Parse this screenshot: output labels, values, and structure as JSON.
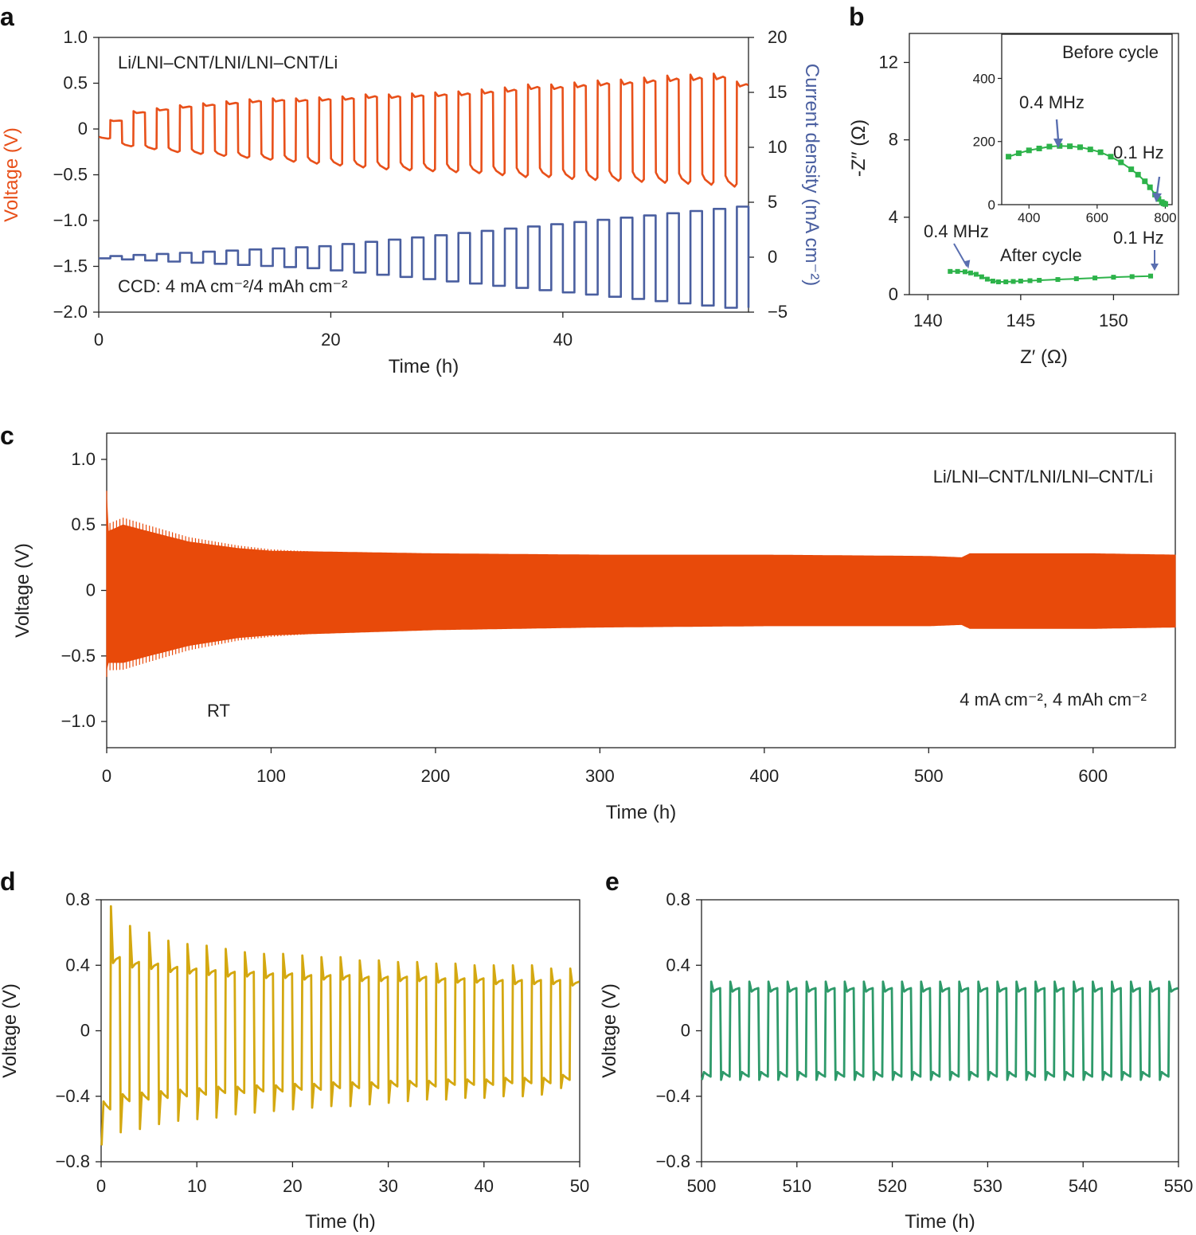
{
  "colors": {
    "a_voltage": "#e8501a",
    "a_current": "#4a5fa0",
    "b_green": "#2db34a",
    "b_arrow": "#5a6fb0",
    "c_voltage": "#e84a0a",
    "d_voltage": "#d4a810",
    "e_voltage": "#2e9a6a"
  },
  "chart_data": [
    {
      "panel": "a",
      "type": "line",
      "annotations": [
        "Li/LNI–CNT/LNI/LNI–CNT/Li",
        "CCD: 4 mA cm⁻²/4 mAh cm⁻²"
      ],
      "xlabel": "Time (h)",
      "ylabel": "Voltage (V)",
      "y2label": "Current density (mA cm⁻²)",
      "xlim": [
        0,
        56
      ],
      "ylim": [
        -2.0,
        1.0
      ],
      "y2lim": [
        -5,
        20
      ],
      "xticks": [
        0,
        20,
        40
      ],
      "yticks": [
        -2.0,
        -1.5,
        -1.0,
        -0.5,
        0,
        0.5,
        1.0
      ],
      "ytick_labels": [
        "−2.0",
        "−1.5",
        "−1.0",
        "−0.5",
        "0",
        "0.5",
        "1.0"
      ],
      "y2ticks": [
        -5,
        0,
        5,
        10,
        15,
        20
      ],
      "y2tick_labels": [
        "−5",
        "0",
        "5",
        "10",
        "15",
        "20"
      ],
      "cycle_period_h": 2.0,
      "series": [
        {
          "name": "Voltage (V)",
          "axis": "left",
          "cycles": [
            {
              "t": 0,
              "plating": -0.1,
              "stripping": 0.09
            },
            {
              "t": 2,
              "plating": -0.18,
              "stripping": 0.18
            },
            {
              "t": 4,
              "plating": -0.21,
              "stripping": 0.21
            },
            {
              "t": 6,
              "plating": -0.24,
              "stripping": 0.24
            },
            {
              "t": 8,
              "plating": -0.26,
              "stripping": 0.26
            },
            {
              "t": 10,
              "plating": -0.28,
              "stripping": 0.28
            },
            {
              "t": 12,
              "plating": -0.3,
              "stripping": 0.3
            },
            {
              "t": 14,
              "plating": -0.32,
              "stripping": 0.31
            },
            {
              "t": 16,
              "plating": -0.34,
              "stripping": 0.31
            },
            {
              "t": 18,
              "plating": -0.36,
              "stripping": 0.32
            },
            {
              "t": 20,
              "plating": -0.38,
              "stripping": 0.33
            },
            {
              "t": 22,
              "plating": -0.4,
              "stripping": 0.35
            },
            {
              "t": 24,
              "plating": -0.42,
              "stripping": 0.35
            },
            {
              "t": 26,
              "plating": -0.43,
              "stripping": 0.36
            },
            {
              "t": 28,
              "plating": -0.44,
              "stripping": 0.37
            },
            {
              "t": 30,
              "plating": -0.45,
              "stripping": 0.38
            },
            {
              "t": 32,
              "plating": -0.46,
              "stripping": 0.4
            },
            {
              "t": 34,
              "plating": -0.48,
              "stripping": 0.42
            },
            {
              "t": 36,
              "plating": -0.5,
              "stripping": 0.45
            },
            {
              "t": 38,
              "plating": -0.5,
              "stripping": 0.45
            },
            {
              "t": 40,
              "plating": -0.52,
              "stripping": 0.47
            },
            {
              "t": 42,
              "plating": -0.53,
              "stripping": 0.49
            },
            {
              "t": 44,
              "plating": -0.54,
              "stripping": 0.5
            },
            {
              "t": 46,
              "plating": -0.55,
              "stripping": 0.52
            },
            {
              "t": 48,
              "plating": -0.56,
              "stripping": 0.54
            },
            {
              "t": 50,
              "plating": -0.57,
              "stripping": 0.55
            },
            {
              "t": 52,
              "plating": -0.58,
              "stripping": 0.56
            },
            {
              "t": 54,
              "plating": -0.6,
              "stripping": 0.48
            }
          ]
        },
        {
          "name": "Current density (mA cm⁻²)",
          "axis": "right",
          "cycles": [
            {
              "t": 0,
              "amplitude": 0.1
            },
            {
              "t": 2,
              "amplitude": 0.2
            },
            {
              "t": 4,
              "amplitude": 0.3
            },
            {
              "t": 6,
              "amplitude": 0.4
            },
            {
              "t": 8,
              "amplitude": 0.5
            },
            {
              "t": 10,
              "amplitude": 0.6
            },
            {
              "t": 12,
              "amplitude": 0.7
            },
            {
              "t": 14,
              "amplitude": 0.8
            },
            {
              "t": 16,
              "amplitude": 0.9
            },
            {
              "t": 18,
              "amplitude": 1.0
            },
            {
              "t": 20,
              "amplitude": 1.2
            },
            {
              "t": 22,
              "amplitude": 1.4
            },
            {
              "t": 24,
              "amplitude": 1.6
            },
            {
              "t": 26,
              "amplitude": 1.8
            },
            {
              "t": 28,
              "amplitude": 2.0
            },
            {
              "t": 30,
              "amplitude": 2.2
            },
            {
              "t": 32,
              "amplitude": 2.4
            },
            {
              "t": 34,
              "amplitude": 2.6
            },
            {
              "t": 36,
              "amplitude": 2.8
            },
            {
              "t": 38,
              "amplitude": 3.0
            },
            {
              "t": 40,
              "amplitude": 3.2
            },
            {
              "t": 42,
              "amplitude": 3.4
            },
            {
              "t": 44,
              "amplitude": 3.6
            },
            {
              "t": 46,
              "amplitude": 3.8
            },
            {
              "t": 48,
              "amplitude": 4.0
            },
            {
              "t": 50,
              "amplitude": 4.2
            },
            {
              "t": 52,
              "amplitude": 4.4
            },
            {
              "t": 54,
              "amplitude": 4.6
            }
          ]
        }
      ]
    },
    {
      "panel": "b",
      "type": "scatter",
      "xlabel": "Z′ (Ω)",
      "ylabel": "-Z′′ (Ω)",
      "xlim": [
        139,
        153.5
      ],
      "ylim": [
        0,
        13.5
      ],
      "xticks": [
        140,
        145,
        150
      ],
      "yticks": [
        0,
        4,
        8,
        12
      ],
      "annotations": [
        "0.4 MHz",
        "After cycle",
        "0.1 Hz"
      ],
      "series": [
        {
          "name": "After cycle",
          "x": [
            141.2,
            141.6,
            142.0,
            142.3,
            142.6,
            142.9,
            143.2,
            143.5,
            143.8,
            144.2,
            144.6,
            145.0,
            145.5,
            146.0,
            147.0,
            148.0,
            149.0,
            150.0,
            151.0,
            152.0
          ],
          "y": [
            1.2,
            1.2,
            1.18,
            1.12,
            1.05,
            0.92,
            0.8,
            0.7,
            0.66,
            0.66,
            0.68,
            0.7,
            0.72,
            0.74,
            0.78,
            0.82,
            0.86,
            0.9,
            0.93,
            0.96
          ]
        }
      ],
      "inset": {
        "title": "Before cycle",
        "xlim": [
          320,
          820
        ],
        "ylim": [
          0,
          540
        ],
        "xticks": [
          400,
          600,
          800
        ],
        "yticks": [
          0,
          200,
          400
        ],
        "annotations": [
          "0.4 MHz",
          "0.1 Hz"
        ],
        "x": [
          340,
          370,
          400,
          430,
          460,
          490,
          520,
          550,
          580,
          610,
          640,
          670,
          700,
          720,
          740,
          755,
          770,
          780,
          790,
          795,
          800
        ],
        "y": [
          152,
          163,
          172,
          178,
          184,
          186,
          185,
          182,
          175,
          166,
          152,
          134,
          112,
          95,
          74,
          55,
          32,
          18,
          8,
          4,
          2
        ]
      }
    },
    {
      "panel": "c",
      "type": "line",
      "annotations": [
        "Li/LNI–CNT/LNI/LNI–CNT/Li",
        "RT",
        "4 mA cm⁻², 4 mAh cm⁻²"
      ],
      "xlabel": "Time (h)",
      "ylabel": "Voltage (V)",
      "xlim": [
        0,
        650
      ],
      "ylim": [
        -1.2,
        1.2
      ],
      "xticks": [
        0,
        100,
        200,
        300,
        400,
        500,
        600
      ],
      "yticks": [
        -1.0,
        -0.5,
        0,
        0.5,
        1.0
      ],
      "ytick_labels": [
        "−1.0",
        "−0.5",
        "0",
        "0.5",
        "1.0"
      ],
      "series": [
        {
          "name": "Voltage envelope",
          "x": [
            0,
            1,
            10,
            25,
            50,
            80,
            100,
            150,
            200,
            300,
            400,
            500,
            520,
            525,
            600,
            650
          ],
          "upper": [
            0.7,
            0.45,
            0.5,
            0.45,
            0.37,
            0.32,
            0.3,
            0.29,
            0.28,
            0.27,
            0.27,
            0.26,
            0.25,
            0.28,
            0.28,
            0.27
          ],
          "lower": [
            -0.6,
            -0.55,
            -0.55,
            -0.5,
            -0.42,
            -0.36,
            -0.34,
            -0.32,
            -0.3,
            -0.28,
            -0.27,
            -0.27,
            -0.26,
            -0.29,
            -0.29,
            -0.28
          ]
        }
      ]
    },
    {
      "panel": "d",
      "type": "line",
      "xlabel": "Time (h)",
      "ylabel": "Voltage (V)",
      "xlim": [
        0,
        50
      ],
      "ylim": [
        -0.8,
        0.8
      ],
      "xticks": [
        0,
        10,
        20,
        30,
        40,
        50
      ],
      "yticks": [
        -0.8,
        -0.4,
        0,
        0.4,
        0.8
      ],
      "ytick_labels": [
        "−0.8",
        "−0.4",
        "0",
        "0.4",
        "0.8"
      ],
      "series": [
        {
          "name": "Voltage (V)",
          "cycle_period_h": 2.0,
          "strip_peak": [
            0.76,
            0.64,
            0.6,
            0.55,
            0.53,
            0.52,
            0.5,
            0.48,
            0.47,
            0.47,
            0.46,
            0.45,
            0.45,
            0.43,
            0.43,
            0.42,
            0.42,
            0.41,
            0.41,
            0.4,
            0.4,
            0.4,
            0.4,
            0.38,
            0.38
          ],
          "strip_plateau": [
            0.45,
            0.42,
            0.41,
            0.39,
            0.38,
            0.37,
            0.36,
            0.36,
            0.35,
            0.35,
            0.34,
            0.34,
            0.34,
            0.33,
            0.33,
            0.33,
            0.33,
            0.32,
            0.32,
            0.32,
            0.31,
            0.31,
            0.31,
            0.31,
            0.3
          ],
          "plate_peak": [
            -0.7,
            -0.62,
            -0.6,
            -0.57,
            -0.55,
            -0.54,
            -0.53,
            -0.51,
            -0.5,
            -0.49,
            -0.48,
            -0.47,
            -0.46,
            -0.46,
            -0.45,
            -0.44,
            -0.43,
            -0.42,
            -0.42,
            -0.41,
            -0.41,
            -0.4,
            -0.4,
            -0.39,
            -0.35
          ],
          "plate_plateau": [
            -0.48,
            -0.43,
            -0.42,
            -0.41,
            -0.4,
            -0.39,
            -0.38,
            -0.38,
            -0.37,
            -0.37,
            -0.36,
            -0.36,
            -0.35,
            -0.35,
            -0.35,
            -0.34,
            -0.34,
            -0.34,
            -0.33,
            -0.33,
            -0.33,
            -0.32,
            -0.32,
            -0.32,
            -0.3
          ]
        }
      ]
    },
    {
      "panel": "e",
      "type": "line",
      "xlabel": "Time (h)",
      "ylabel": "Voltage (V)",
      "xlim": [
        500,
        550
      ],
      "ylim": [
        -0.8,
        0.8
      ],
      "xticks": [
        500,
        510,
        520,
        530,
        540,
        550
      ],
      "yticks": [
        -0.8,
        -0.4,
        0,
        0.4,
        0.8
      ],
      "ytick_labels": [
        "−0.8",
        "−0.4",
        "0",
        "0.4",
        "0.8"
      ],
      "series": [
        {
          "name": "Voltage (V)",
          "cycle_period_h": 2.0,
          "strip_peak": 0.3,
          "strip_plateau": 0.26,
          "plate_peak": -0.3,
          "plate_plateau": -0.28
        }
      ]
    }
  ]
}
